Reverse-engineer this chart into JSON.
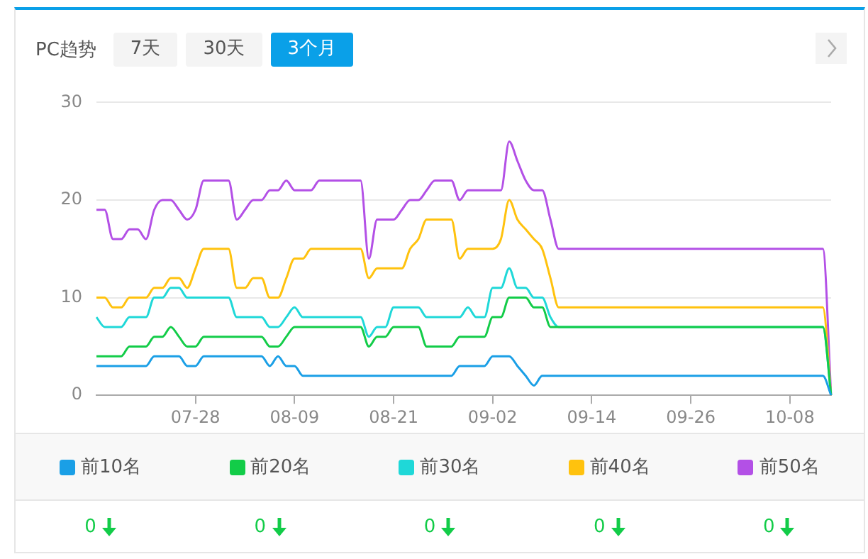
{
  "chart_data": {
    "type": "line",
    "title": "PC趋势",
    "categories": [
      null,
      null,
      null,
      null,
      null,
      null,
      null,
      null,
      null,
      null,
      null,
      null,
      "07-28",
      null,
      null,
      null,
      null,
      null,
      null,
      null,
      null,
      null,
      null,
      null,
      "08-09",
      null,
      null,
      null,
      null,
      null,
      null,
      null,
      null,
      null,
      null,
      null,
      "08-21",
      null,
      null,
      null,
      null,
      null,
      null,
      null,
      null,
      null,
      null,
      null,
      "09-02",
      null,
      null,
      null,
      null,
      null,
      null,
      null,
      null,
      null,
      null,
      null,
      "09-14",
      null,
      null,
      null,
      null,
      null,
      null,
      null,
      null,
      null,
      null,
      null,
      "09-26",
      null,
      null,
      null,
      null,
      null,
      null,
      null,
      null,
      null,
      null,
      null,
      "10-08",
      null,
      null,
      null,
      null,
      null
    ],
    "series": [
      {
        "name": "前10名",
        "color": "#1a9fe6",
        "values": [
          3,
          3,
          3,
          3,
          3,
          3,
          3,
          4,
          4,
          4,
          4,
          3,
          3,
          4,
          4,
          4,
          4,
          4,
          4,
          4,
          4,
          3,
          4,
          3,
          3,
          2,
          2,
          2,
          2,
          2,
          2,
          2,
          2,
          2,
          2,
          2,
          2,
          2,
          2,
          2,
          2,
          2,
          2,
          2,
          3,
          3,
          3,
          3,
          4,
          4,
          4,
          3,
          2,
          1,
          2,
          2,
          2,
          2,
          2,
          2,
          2,
          2,
          2,
          2,
          2,
          2,
          2,
          2,
          2,
          2,
          2,
          2,
          2,
          2,
          2,
          2,
          2,
          2,
          2,
          2,
          2,
          2,
          2,
          2,
          2,
          2,
          2,
          2,
          2,
          0
        ]
      },
      {
        "name": "前20名",
        "color": "#12cc48",
        "values": [
          4,
          4,
          4,
          4,
          5,
          5,
          5,
          6,
          6,
          7,
          6,
          5,
          5,
          6,
          6,
          6,
          6,
          6,
          6,
          6,
          6,
          5,
          5,
          6,
          7,
          7,
          7,
          7,
          7,
          7,
          7,
          7,
          7,
          5,
          6,
          6,
          7,
          7,
          7,
          7,
          5,
          5,
          5,
          5,
          6,
          6,
          6,
          6,
          8,
          8,
          10,
          10,
          10,
          9,
          9,
          7,
          7,
          7,
          7,
          7,
          7,
          7,
          7,
          7,
          7,
          7,
          7,
          7,
          7,
          7,
          7,
          7,
          7,
          7,
          7,
          7,
          7,
          7,
          7,
          7,
          7,
          7,
          7,
          7,
          7,
          7,
          7,
          7,
          7,
          0
        ]
      },
      {
        "name": "前30名",
        "color": "#1fd8d8",
        "values": [
          8,
          7,
          7,
          7,
          8,
          8,
          8,
          10,
          10,
          11,
          11,
          10,
          10,
          10,
          10,
          10,
          10,
          8,
          8,
          8,
          8,
          7,
          7,
          8,
          9,
          8,
          8,
          8,
          8,
          8,
          8,
          8,
          8,
          6,
          7,
          7,
          9,
          9,
          9,
          9,
          8,
          8,
          8,
          8,
          8,
          9,
          8,
          8,
          11,
          11,
          13,
          11,
          11,
          10,
          10,
          8,
          7,
          7,
          7,
          7,
          7,
          7,
          7,
          7,
          7,
          7,
          7,
          7,
          7,
          7,
          7,
          7,
          7,
          7,
          7,
          7,
          7,
          7,
          7,
          7,
          7,
          7,
          7,
          7,
          7,
          7,
          7,
          7,
          7,
          0
        ]
      },
      {
        "name": "前40名",
        "color": "#ffc20e",
        "values": [
          10,
          10,
          9,
          9,
          10,
          10,
          10,
          11,
          11,
          12,
          12,
          11,
          13,
          15,
          15,
          15,
          15,
          11,
          11,
          12,
          12,
          10,
          10,
          12,
          14,
          14,
          15,
          15,
          15,
          15,
          15,
          15,
          15,
          12,
          13,
          13,
          13,
          13,
          15,
          16,
          18,
          18,
          18,
          18,
          14,
          15,
          15,
          15,
          15,
          16,
          20,
          18,
          17,
          16,
          15,
          12,
          9,
          9,
          9,
          9,
          9,
          9,
          9,
          9,
          9,
          9,
          9,
          9,
          9,
          9,
          9,
          9,
          9,
          9,
          9,
          9,
          9,
          9,
          9,
          9,
          9,
          9,
          9,
          9,
          9,
          9,
          9,
          9,
          9,
          0
        ]
      },
      {
        "name": "前50名",
        "color": "#b350e6",
        "values": [
          19,
          19,
          16,
          16,
          17,
          17,
          16,
          19,
          20,
          20,
          19,
          18,
          19,
          22,
          22,
          22,
          22,
          18,
          19,
          20,
          20,
          21,
          21,
          22,
          21,
          21,
          21,
          22,
          22,
          22,
          22,
          22,
          22,
          14,
          18,
          18,
          18,
          19,
          20,
          20,
          21,
          22,
          22,
          22,
          20,
          21,
          21,
          21,
          21,
          21,
          26,
          24,
          22,
          21,
          21,
          18,
          15,
          15,
          15,
          15,
          15,
          15,
          15,
          15,
          15,
          15,
          15,
          15,
          15,
          15,
          15,
          15,
          15,
          15,
          15,
          15,
          15,
          15,
          15,
          15,
          15,
          15,
          15,
          15,
          15,
          15,
          15,
          15,
          15,
          0
        ]
      }
    ],
    "ylim": [
      0,
      30
    ],
    "yticks": [
      0,
      10,
      20,
      30
    ],
    "grid": "y",
    "legend": "bottom",
    "marker": "none",
    "annotations": [
      "7天",
      "30天",
      "3个月",
      "0",
      "0",
      "0",
      "0",
      "0"
    ]
  }
}
